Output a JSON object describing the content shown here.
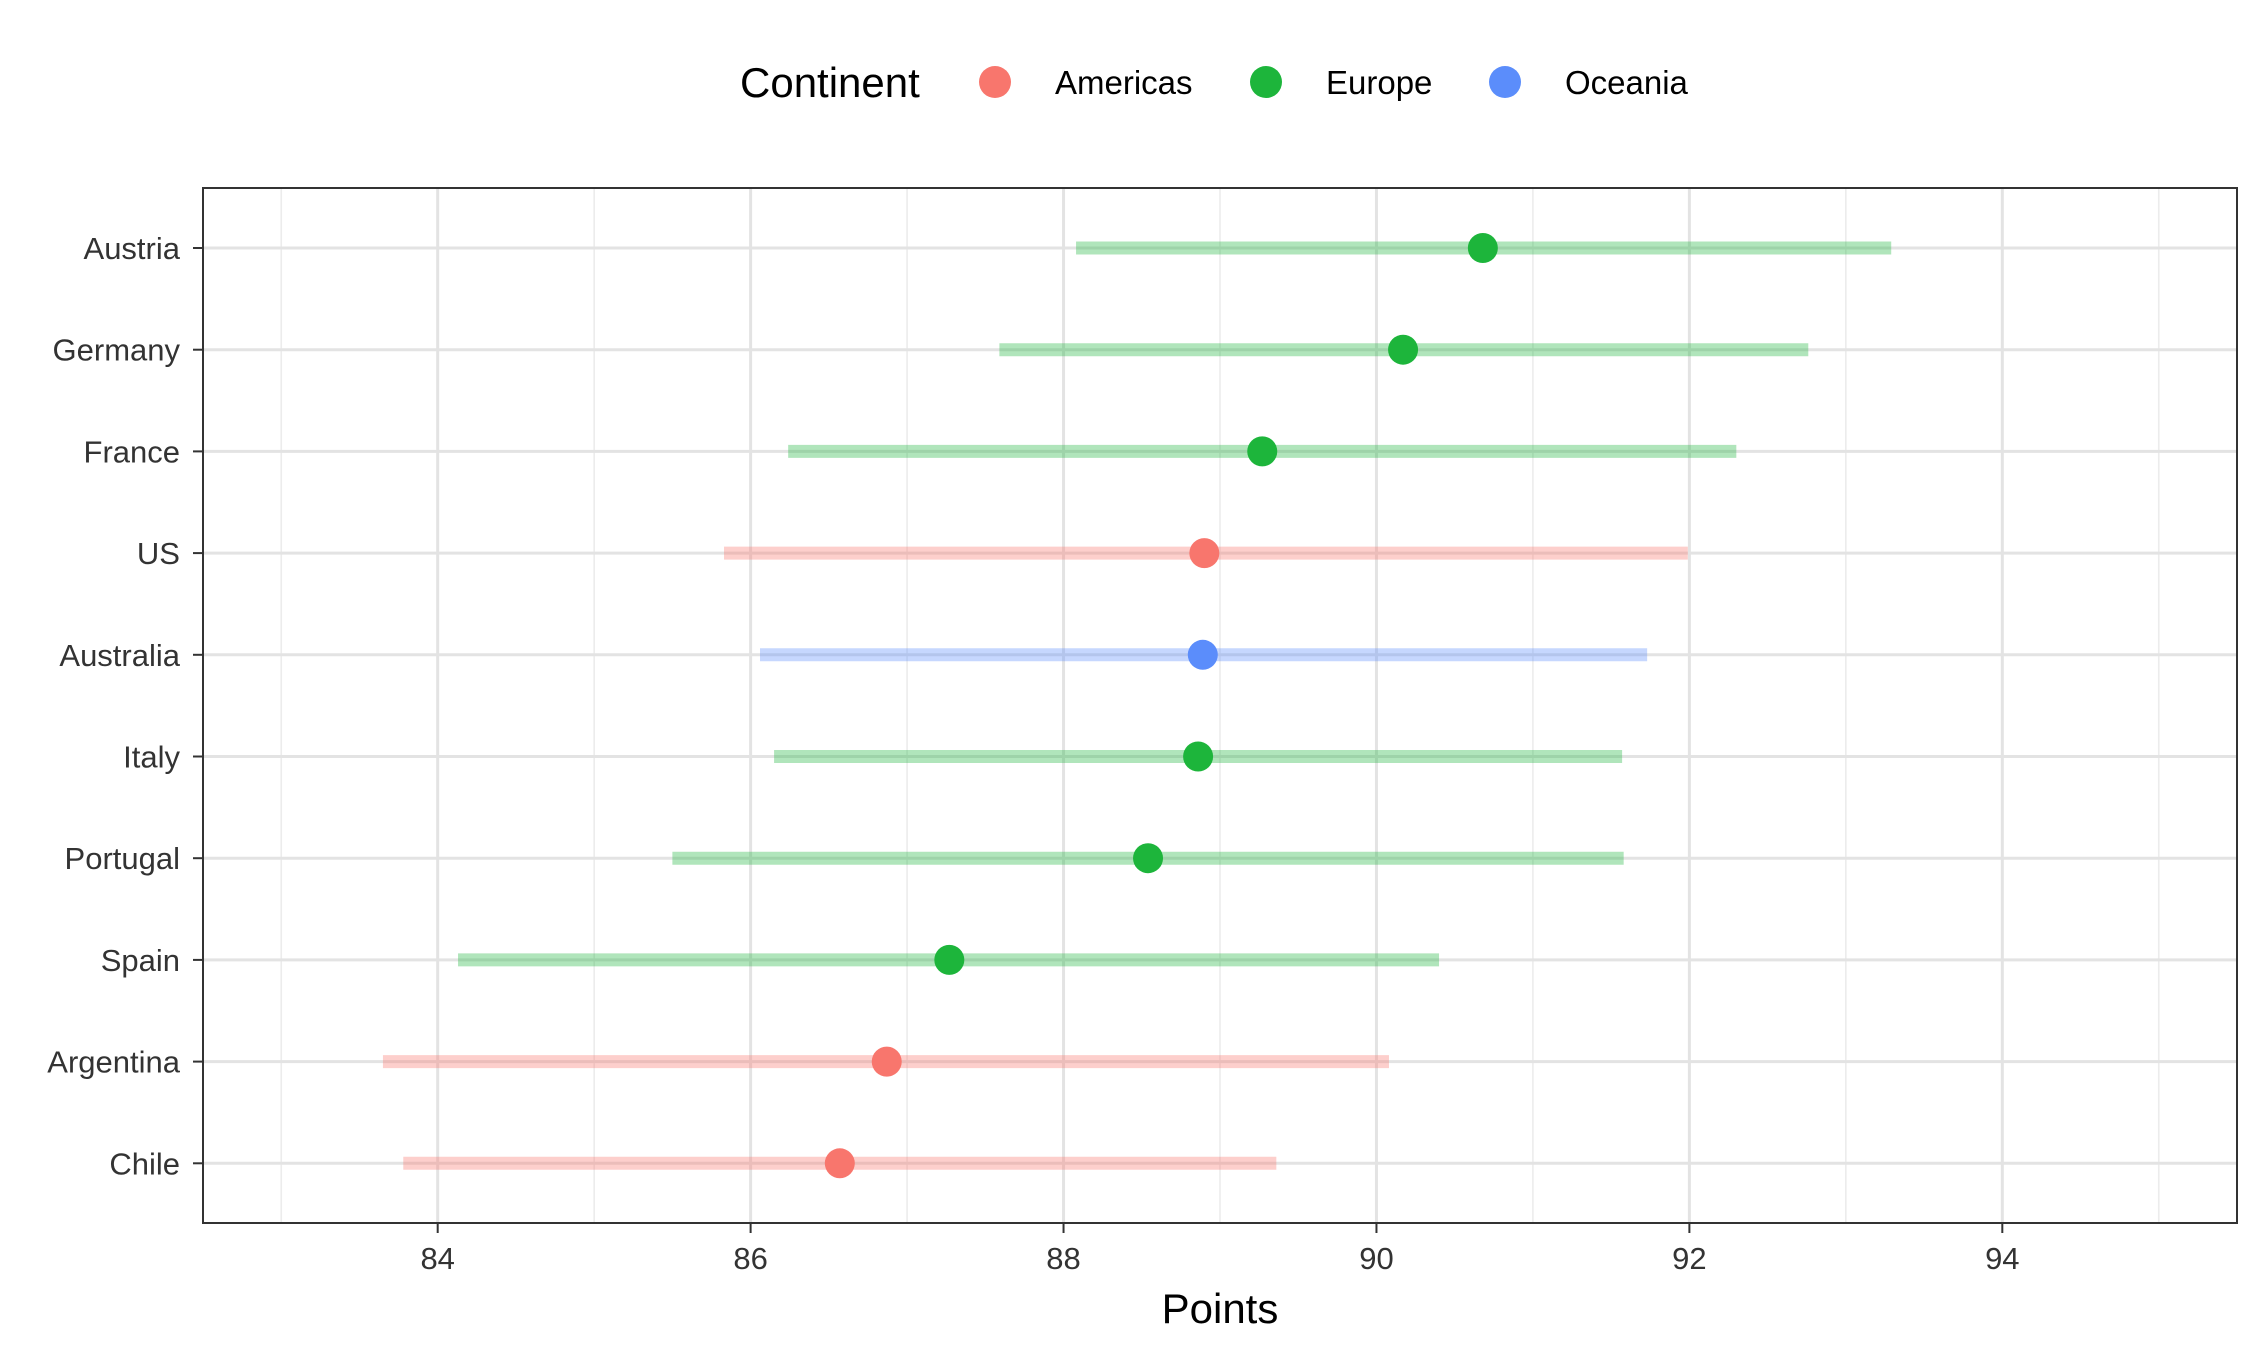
{
  "chart_data": {
    "type": "dot-range",
    "xlabel": "Points",
    "ylabel": "",
    "xlim": [
      82.5,
      95.5
    ],
    "xticks": [
      84,
      86,
      88,
      90,
      92,
      94
    ],
    "grid": true,
    "legend": {
      "title": "Continent",
      "placement": "top",
      "entries": [
        {
          "name": "Americas",
          "color": "#f8766d"
        },
        {
          "name": "Europe",
          "color": "#1db53b"
        },
        {
          "name": "Oceania",
          "color": "#5b8dfb"
        }
      ]
    },
    "rows": [
      {
        "country": "Austria",
        "continent": "Europe",
        "low": 88.08,
        "mean": 90.68,
        "high": 93.29
      },
      {
        "country": "Germany",
        "continent": "Europe",
        "low": 87.59,
        "mean": 90.17,
        "high": 92.76
      },
      {
        "country": "France",
        "continent": "Europe",
        "low": 86.24,
        "mean": 89.27,
        "high": 92.3
      },
      {
        "country": "US",
        "continent": "Americas",
        "low": 85.83,
        "mean": 88.9,
        "high": 91.99
      },
      {
        "country": "Australia",
        "continent": "Oceania",
        "low": 86.06,
        "mean": 88.89,
        "high": 91.73
      },
      {
        "country": "Italy",
        "continent": "Europe",
        "low": 86.15,
        "mean": 88.86,
        "high": 91.57
      },
      {
        "country": "Portugal",
        "continent": "Europe",
        "low": 85.5,
        "mean": 88.54,
        "high": 91.58
      },
      {
        "country": "Spain",
        "continent": "Europe",
        "low": 84.13,
        "mean": 87.27,
        "high": 90.4
      },
      {
        "country": "Argentina",
        "continent": "Americas",
        "low": 83.65,
        "mean": 86.87,
        "high": 90.08
      },
      {
        "country": "Chile",
        "continent": "Americas",
        "low": 83.78,
        "mean": 86.57,
        "high": 89.36
      }
    ]
  }
}
